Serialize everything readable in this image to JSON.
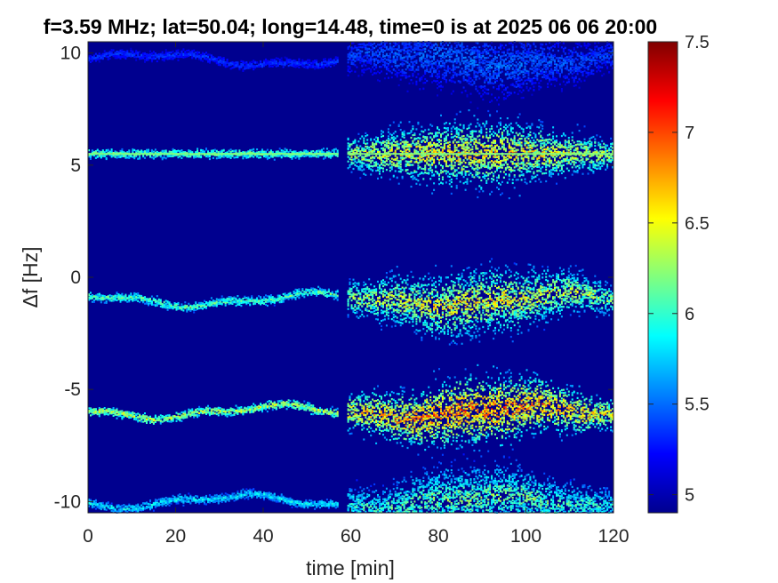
{
  "chart_data": {
    "type": "heatmap",
    "title": "f=3.59 MHz;  lat=50.04; long=14.48, time=0 is at 2025 06 06 20:00",
    "xlabel": "time [min]",
    "ylabel": "Δf [Hz]",
    "xlim": [
      0,
      120
    ],
    "ylim": [
      -10.5,
      10.5
    ],
    "x_ticks": [
      "0",
      "20",
      "40",
      "60",
      "80",
      "100",
      "120"
    ],
    "y_ticks": [
      "10",
      "5",
      "0",
      "-5",
      "-10"
    ],
    "colorbar": {
      "range": [
        4.9,
        7.5
      ],
      "ticks": [
        "5",
        "5.5",
        "6",
        "6.5",
        "7",
        "7.5"
      ],
      "colormap": "jet"
    },
    "data_gap_minutes": [
      57,
      59
    ],
    "bands": [
      {
        "center_hz": 9.7,
        "peak_value": 5.6,
        "notes": "faint band near top"
      },
      {
        "center_hz": 5.5,
        "peak_value": 6.9,
        "notes": "carrier line with broad spread 60-110 min"
      },
      {
        "center_hz": -1.0,
        "peak_value": 6.8,
        "notes": "wavy band, broad 60-115 min"
      },
      {
        "center_hz": -6.0,
        "peak_value": 7.2,
        "notes": "strongest band, broad 60-120 min"
      },
      {
        "center_hz": -10.0,
        "peak_value": 6.4,
        "notes": "band at bottom edge"
      }
    ],
    "background_value": 4.95
  }
}
